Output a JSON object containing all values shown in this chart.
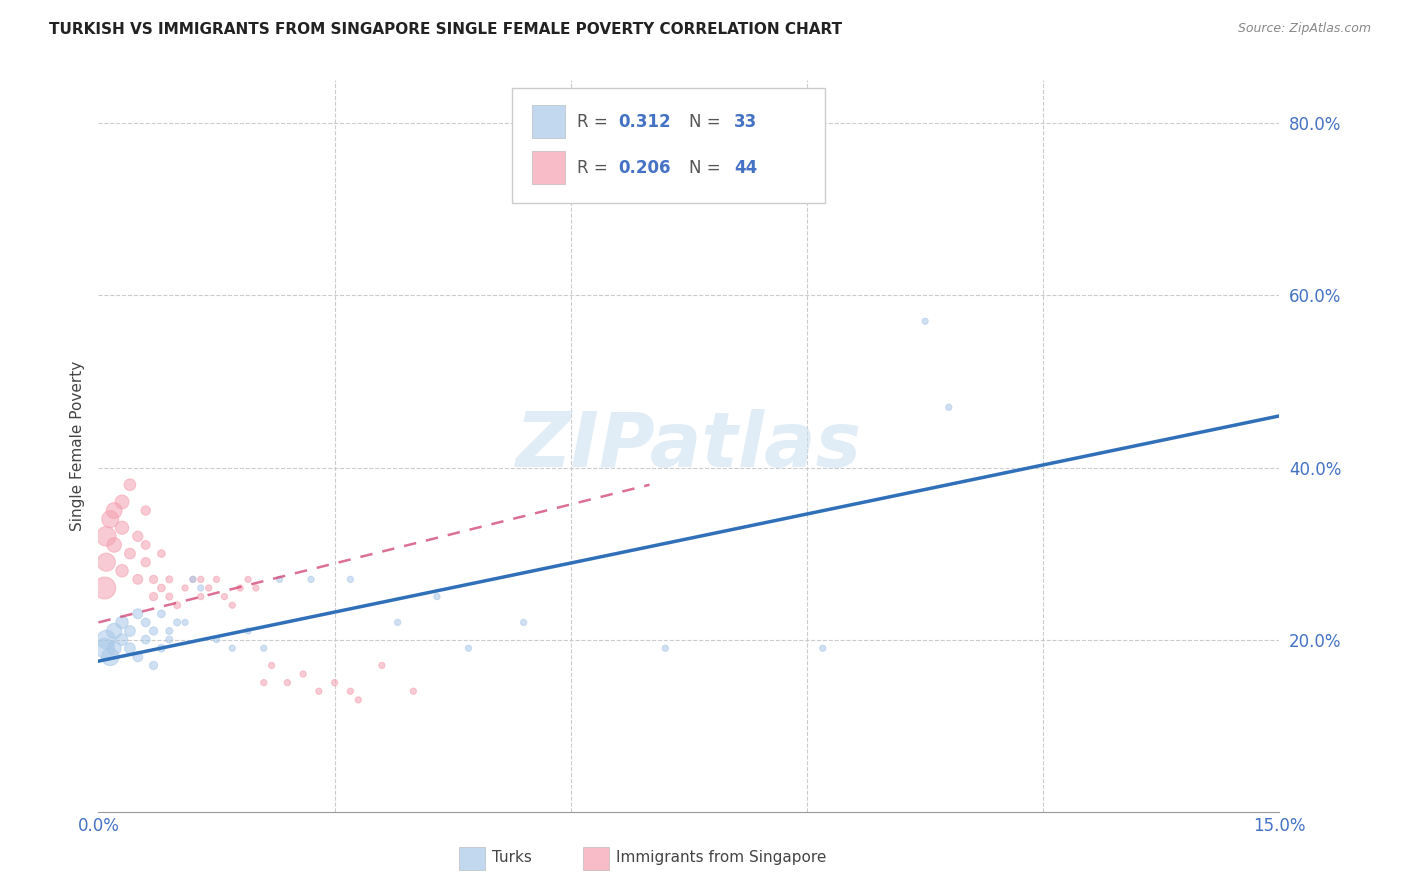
{
  "title": "TURKISH VS IMMIGRANTS FROM SINGAPORE SINGLE FEMALE POVERTY CORRELATION CHART",
  "source": "Source: ZipAtlas.com",
  "ylabel": "Single Female Poverty",
  "xlim": [
    0.0,
    0.15
  ],
  "ylim": [
    0.0,
    0.85
  ],
  "watermark": "ZIPatlas",
  "blue_color": "#a8c8e8",
  "pink_color": "#f4a0b0",
  "blue_line_color": "#3070b8",
  "pink_line_color": "#d04070",
  "turks_scatter_x": [
    0.0008,
    0.001,
    0.0015,
    0.002,
    0.002,
    0.003,
    0.003,
    0.004,
    0.004,
    0.005,
    0.005,
    0.006,
    0.006,
    0.007,
    0.007,
    0.008,
    0.008,
    0.009,
    0.009,
    0.01,
    0.011,
    0.012,
    0.013,
    0.015,
    0.017,
    0.019,
    0.021,
    0.023,
    0.027,
    0.032,
    0.038,
    0.043,
    0.047,
    0.054,
    0.072,
    0.092,
    0.105,
    0.108
  ],
  "turks_scatter_y": [
    0.19,
    0.2,
    0.18,
    0.21,
    0.19,
    0.22,
    0.2,
    0.21,
    0.19,
    0.23,
    0.18,
    0.22,
    0.2,
    0.21,
    0.17,
    0.23,
    0.19,
    0.21,
    0.2,
    0.22,
    0.22,
    0.27,
    0.26,
    0.2,
    0.19,
    0.21,
    0.19,
    0.27,
    0.27,
    0.27,
    0.22,
    0.25,
    0.19,
    0.22,
    0.19,
    0.19,
    0.57,
    0.47
  ],
  "turks_sizes": [
    200,
    180,
    160,
    120,
    100,
    80,
    70,
    60,
    60,
    50,
    50,
    40,
    40,
    35,
    35,
    30,
    30,
    25,
    25,
    25,
    20,
    20,
    20,
    20,
    20,
    20,
    20,
    20,
    20,
    20,
    20,
    20,
    20,
    20,
    20,
    20,
    20,
    20
  ],
  "singapore_scatter_x": [
    0.0008,
    0.001,
    0.001,
    0.0015,
    0.002,
    0.002,
    0.003,
    0.003,
    0.003,
    0.004,
    0.004,
    0.005,
    0.005,
    0.006,
    0.006,
    0.006,
    0.007,
    0.007,
    0.008,
    0.008,
    0.009,
    0.009,
    0.01,
    0.011,
    0.012,
    0.013,
    0.013,
    0.014,
    0.015,
    0.016,
    0.017,
    0.018,
    0.019,
    0.02,
    0.021,
    0.022,
    0.024,
    0.026,
    0.028,
    0.03,
    0.032,
    0.033,
    0.036,
    0.04
  ],
  "singapore_scatter_y": [
    0.26,
    0.32,
    0.29,
    0.34,
    0.35,
    0.31,
    0.36,
    0.33,
    0.28,
    0.38,
    0.3,
    0.32,
    0.27,
    0.29,
    0.35,
    0.31,
    0.27,
    0.25,
    0.3,
    0.26,
    0.27,
    0.25,
    0.24,
    0.26,
    0.27,
    0.25,
    0.27,
    0.26,
    0.27,
    0.25,
    0.24,
    0.26,
    0.27,
    0.26,
    0.15,
    0.17,
    0.15,
    0.16,
    0.14,
    0.15,
    0.14,
    0.13,
    0.17,
    0.14
  ],
  "singapore_sizes": [
    250,
    200,
    170,
    150,
    130,
    110,
    100,
    90,
    80,
    70,
    60,
    55,
    50,
    45,
    45,
    40,
    35,
    35,
    30,
    30,
    25,
    25,
    25,
    20,
    20,
    20,
    20,
    20,
    20,
    20,
    20,
    20,
    20,
    20,
    20,
    20,
    20,
    20,
    20,
    20,
    20,
    20,
    20,
    20
  ],
  "blue_line_x0": 0.0,
  "blue_line_y0": 0.175,
  "blue_line_x1": 0.15,
  "blue_line_y1": 0.46,
  "pink_line_x0": 0.0,
  "pink_line_y0": 0.22,
  "pink_line_x1": 0.07,
  "pink_line_y1": 0.38
}
